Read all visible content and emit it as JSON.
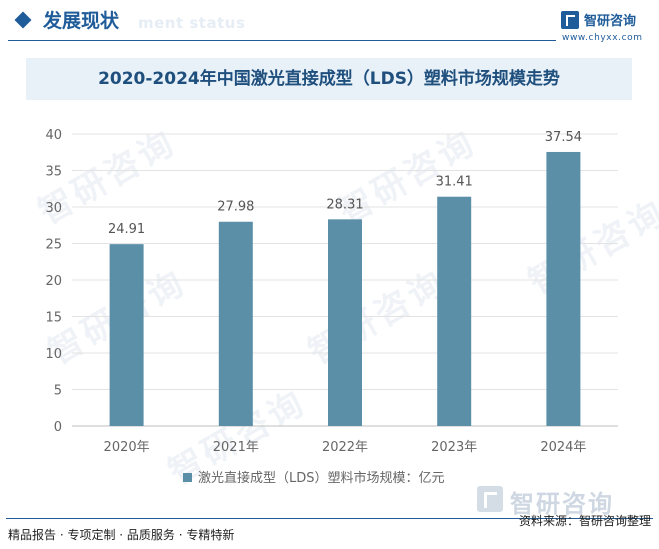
{
  "header": {
    "title": "发展现状",
    "ghost_text": "ment status",
    "brand_name": "智研咨询",
    "brand_url": "www.chyxx.com"
  },
  "watermark_text": "智研咨询",
  "footer": {
    "slogan": "精品报告 · 专项定制 · 品质服务 · 专精特新",
    "logo_text": "智研咨询",
    "source": "资料来源：智研咨询整理"
  },
  "colors": {
    "bar": "#5b8fa8",
    "accent": "#1f5c99",
    "title_bg": "#e8f0f8"
  },
  "chart_data": {
    "type": "bar",
    "title": "2020-2024年中国激光直接成型（LDS）塑料市场规模走势",
    "categories": [
      "2020年",
      "2021年",
      "2022年",
      "2023年",
      "2024年"
    ],
    "series": [
      {
        "name": "激光直接成型（LDS）塑料市场规模：亿元",
        "values": [
          24.91,
          27.98,
          28.31,
          31.41,
          37.54
        ]
      }
    ],
    "data_labels": [
      "24.91",
      "27.98",
      "28.31",
      "31.41",
      "37.54"
    ],
    "yticks": [
      "0",
      "5",
      "10",
      "15",
      "20",
      "25",
      "30",
      "35",
      "40"
    ],
    "ylim": [
      0,
      40
    ],
    "grid": true,
    "legend": "bottom-center"
  }
}
